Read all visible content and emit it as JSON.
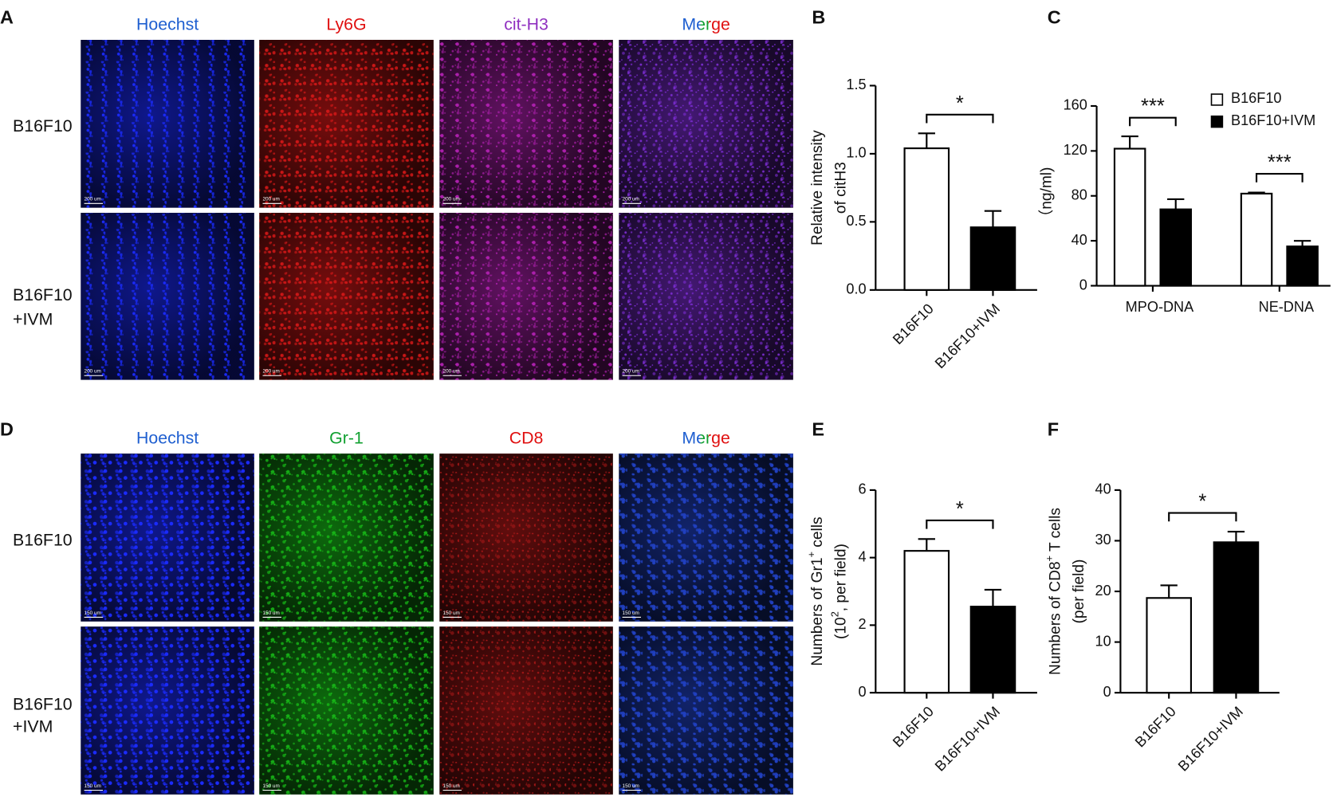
{
  "panels": [
    {
      "letter": "A",
      "columns": [
        "Hoechst",
        "Ly6G",
        "cit-H3",
        "Merge"
      ],
      "rows": [
        [
          "B16F10"
        ],
        [
          "B16F10",
          "+IVM"
        ]
      ],
      "scale_bar": "200 um"
    },
    {
      "letter": "D",
      "columns": [
        "Hoechst",
        "Gr-1",
        "CD8",
        "Merge"
      ],
      "rows": [
        [
          "B16F10"
        ],
        [
          "B16F10",
          "+IVM"
        ]
      ],
      "scale_bar": "150 um"
    }
  ],
  "chart_data": [
    {
      "type": "bar",
      "panel": "B",
      "ylabel": [
        [
          "Relative intensity"
        ],
        [
          "of citH3"
        ]
      ],
      "categories": [
        "B16F10",
        "B16F10+IVM"
      ],
      "values": [
        1.04,
        0.46
      ],
      "errors": [
        0.11,
        0.12
      ],
      "colors": [
        "#ffffff",
        "#000000"
      ],
      "ylim": [
        0,
        1.5
      ],
      "yticks": [
        {
          "value": 0,
          "label": "0.0"
        },
        0.5,
        {
          "value": 1,
          "label": "1.0"
        },
        1.5
      ],
      "significance": "*"
    },
    {
      "type": "grouped-bar",
      "panel": "C",
      "ylabel": [
        [
          "（ng/ml)"
        ]
      ],
      "categories": [
        "MPO-DNA",
        "NE-DNA"
      ],
      "series": [
        {
          "name": "B16F10",
          "color": "#ffffff",
          "values": [
            122,
            82
          ],
          "errors": [
            11,
            1
          ]
        },
        {
          "name": "B16F10+IVM",
          "color": "#000000",
          "values": [
            68,
            35
          ],
          "errors": [
            9,
            5
          ]
        }
      ],
      "ylim": [
        0,
        160
      ],
      "yticks": [
        0,
        40,
        80,
        120,
        160
      ],
      "significance": [
        "***",
        "***"
      ],
      "legend": "top-right"
    },
    {
      "type": "bar",
      "panel": "E",
      "ylabel": [
        [
          "Numbers of Gr1",
          "+",
          " cells"
        ],
        [
          "(10",
          "2",
          ", per field)"
        ]
      ],
      "categories": [
        "B16F10",
        "B16F10+IVM"
      ],
      "values": [
        4.2,
        2.55
      ],
      "errors": [
        0.35,
        0.5
      ],
      "colors": [
        "#ffffff",
        "#000000"
      ],
      "ylim": [
        0,
        6
      ],
      "yticks": [
        0,
        2,
        4,
        6
      ],
      "significance": "*"
    },
    {
      "type": "bar",
      "panel": "F",
      "ylabel": [
        [
          "Numbers of CD8",
          "+",
          " T cells"
        ],
        [
          "(per field)"
        ]
      ],
      "categories": [
        "B16F10",
        "B16F10+IVM"
      ],
      "values": [
        18.7,
        29.7
      ],
      "errors": [
        2.5,
        2.1
      ],
      "colors": [
        "#ffffff",
        "#000000"
      ],
      "ylim": [
        0,
        40
      ],
      "yticks": [
        0,
        10,
        20,
        30,
        40
      ],
      "significance": "*"
    }
  ]
}
